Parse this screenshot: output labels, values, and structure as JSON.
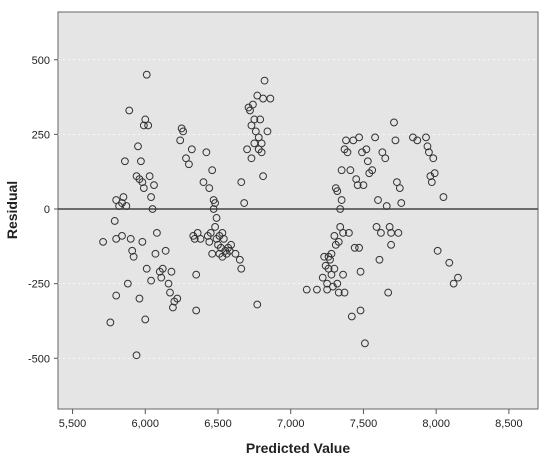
{
  "chart_data": {
    "type": "scatter",
    "title": "",
    "xlabel": "Predicted Value",
    "ylabel": "Residual",
    "xlim": [
      5400,
      8700
    ],
    "ylim": [
      -670,
      660
    ],
    "x_ticks": [
      5500,
      6000,
      6500,
      7000,
      7500,
      8000,
      8500
    ],
    "x_tick_labels": [
      "5,500",
      "6,000",
      "6,500",
      "7,000",
      "7,500",
      "8,000",
      "8,500"
    ],
    "y_ticks": [
      -500,
      -250,
      0,
      250,
      500
    ],
    "y_tick_labels": [
      "-500",
      "-250",
      "0",
      "250",
      "500"
    ],
    "reference_line_y": 0,
    "grid": false,
    "legend": "none",
    "colors": {
      "plot_background": "#e5e5e5",
      "marker_stroke": "#333333",
      "reference_line": "#444444"
    },
    "points": [
      [
        5710,
        -110
      ],
      [
        5760,
        -380
      ],
      [
        5790,
        -40
      ],
      [
        5800,
        30
      ],
      [
        5800,
        -100
      ],
      [
        5800,
        -290
      ],
      [
        5820,
        10
      ],
      [
        5840,
        20
      ],
      [
        5840,
        -90
      ],
      [
        5850,
        40
      ],
      [
        5860,
        160
      ],
      [
        5870,
        10
      ],
      [
        5880,
        -250
      ],
      [
        5890,
        330
      ],
      [
        5900,
        -100
      ],
      [
        5910,
        -140
      ],
      [
        5920,
        -160
      ],
      [
        5940,
        110
      ],
      [
        5940,
        -490
      ],
      [
        5950,
        210
      ],
      [
        5960,
        100
      ],
      [
        5960,
        -300
      ],
      [
        5970,
        160
      ],
      [
        5980,
        90
      ],
      [
        5980,
        -110
      ],
      [
        5990,
        280
      ],
      [
        5990,
        70
      ],
      [
        6000,
        300
      ],
      [
        6000,
        -370
      ],
      [
        6010,
        450
      ],
      [
        6010,
        -200
      ],
      [
        6020,
        280
      ],
      [
        6030,
        110
      ],
      [
        6040,
        40
      ],
      [
        6040,
        -240
      ],
      [
        6050,
        0
      ],
      [
        6060,
        80
      ],
      [
        6070,
        -150
      ],
      [
        6080,
        -80
      ],
      [
        6100,
        -210
      ],
      [
        6110,
        -230
      ],
      [
        6120,
        -200
      ],
      [
        6140,
        -140
      ],
      [
        6160,
        -250
      ],
      [
        6170,
        -280
      ],
      [
        6180,
        -210
      ],
      [
        6190,
        -330
      ],
      [
        6200,
        -310
      ],
      [
        6220,
        -300
      ],
      [
        6240,
        230
      ],
      [
        6250,
        270
      ],
      [
        6260,
        260
      ],
      [
        6280,
        170
      ],
      [
        6300,
        150
      ],
      [
        6320,
        200
      ],
      [
        6330,
        -90
      ],
      [
        6340,
        -100
      ],
      [
        6350,
        -220
      ],
      [
        6350,
        -340
      ],
      [
        6360,
        -80
      ],
      [
        6380,
        -100
      ],
      [
        6400,
        90
      ],
      [
        6420,
        190
      ],
      [
        6430,
        -90
      ],
      [
        6440,
        70
      ],
      [
        6440,
        -110
      ],
      [
        6450,
        -80
      ],
      [
        6460,
        130
      ],
      [
        6460,
        -150
      ],
      [
        6470,
        30
      ],
      [
        6470,
        0
      ],
      [
        6480,
        20
      ],
      [
        6480,
        -60
      ],
      [
        6490,
        -30
      ],
      [
        6490,
        -100
      ],
      [
        6500,
        -120
      ],
      [
        6510,
        -90
      ],
      [
        6510,
        -150
      ],
      [
        6520,
        -130
      ],
      [
        6530,
        -80
      ],
      [
        6530,
        -160
      ],
      [
        6540,
        -100
      ],
      [
        6550,
        -140
      ],
      [
        6560,
        -150
      ],
      [
        6570,
        -130
      ],
      [
        6580,
        -140
      ],
      [
        6590,
        -120
      ],
      [
        6620,
        -150
      ],
      [
        6650,
        -170
      ],
      [
        6660,
        90
      ],
      [
        6660,
        -200
      ],
      [
        6680,
        20
      ],
      [
        6700,
        200
      ],
      [
        6710,
        340
      ],
      [
        6720,
        330
      ],
      [
        6730,
        280
      ],
      [
        6730,
        170
      ],
      [
        6740,
        350
      ],
      [
        6750,
        300
      ],
      [
        6750,
        220
      ],
      [
        6760,
        260
      ],
      [
        6770,
        380
      ],
      [
        6770,
        -320
      ],
      [
        6780,
        240
      ],
      [
        6780,
        200
      ],
      [
        6790,
        300
      ],
      [
        6800,
        220
      ],
      [
        6800,
        190
      ],
      [
        6810,
        370
      ],
      [
        6810,
        110
      ],
      [
        6820,
        430
      ],
      [
        6840,
        260
      ],
      [
        6860,
        370
      ],
      [
        7110,
        -270
      ],
      [
        7180,
        -270
      ],
      [
        7220,
        -230
      ],
      [
        7230,
        -160
      ],
      [
        7240,
        -190
      ],
      [
        7250,
        -270
      ],
      [
        7250,
        -250
      ],
      [
        7260,
        -200
      ],
      [
        7260,
        -160
      ],
      [
        7270,
        -170
      ],
      [
        7280,
        -220
      ],
      [
        7280,
        -150
      ],
      [
        7290,
        -260
      ],
      [
        7300,
        -200
      ],
      [
        7300,
        -90
      ],
      [
        7310,
        70
      ],
      [
        7310,
        -120
      ],
      [
        7320,
        60
      ],
      [
        7320,
        -250
      ],
      [
        7330,
        -110
      ],
      [
        7330,
        -280
      ],
      [
        7340,
        0
      ],
      [
        7340,
        -60
      ],
      [
        7350,
        130
      ],
      [
        7350,
        30
      ],
      [
        7360,
        -80
      ],
      [
        7360,
        -220
      ],
      [
        7370,
        200
      ],
      [
        7370,
        -280
      ],
      [
        7380,
        230
      ],
      [
        7390,
        190
      ],
      [
        7400,
        -80
      ],
      [
        7410,
        130
      ],
      [
        7420,
        -360
      ],
      [
        7430,
        230
      ],
      [
        7440,
        -130
      ],
      [
        7450,
        100
      ],
      [
        7460,
        80
      ],
      [
        7470,
        240
      ],
      [
        7470,
        -130
      ],
      [
        7480,
        -210
      ],
      [
        7480,
        -340
      ],
      [
        7490,
        190
      ],
      [
        7500,
        80
      ],
      [
        7510,
        -450
      ],
      [
        7520,
        200
      ],
      [
        7530,
        160
      ],
      [
        7540,
        120
      ],
      [
        7560,
        130
      ],
      [
        7580,
        240
      ],
      [
        7590,
        -60
      ],
      [
        7600,
        30
      ],
      [
        7610,
        -170
      ],
      [
        7620,
        -80
      ],
      [
        7630,
        190
      ],
      [
        7650,
        170
      ],
      [
        7660,
        10
      ],
      [
        7670,
        -280
      ],
      [
        7680,
        -60
      ],
      [
        7690,
        -80
      ],
      [
        7690,
        -120
      ],
      [
        7710,
        290
      ],
      [
        7720,
        230
      ],
      [
        7730,
        90
      ],
      [
        7740,
        -80
      ],
      [
        7750,
        70
      ],
      [
        7760,
        20
      ],
      [
        7840,
        240
      ],
      [
        7870,
        230
      ],
      [
        7930,
        240
      ],
      [
        7940,
        210
      ],
      [
        7950,
        190
      ],
      [
        7960,
        110
      ],
      [
        7970,
        90
      ],
      [
        7980,
        170
      ],
      [
        7990,
        120
      ],
      [
        8010,
        -140
      ],
      [
        8050,
        40
      ],
      [
        8090,
        -180
      ],
      [
        8120,
        -250
      ],
      [
        8150,
        -230
      ]
    ]
  }
}
